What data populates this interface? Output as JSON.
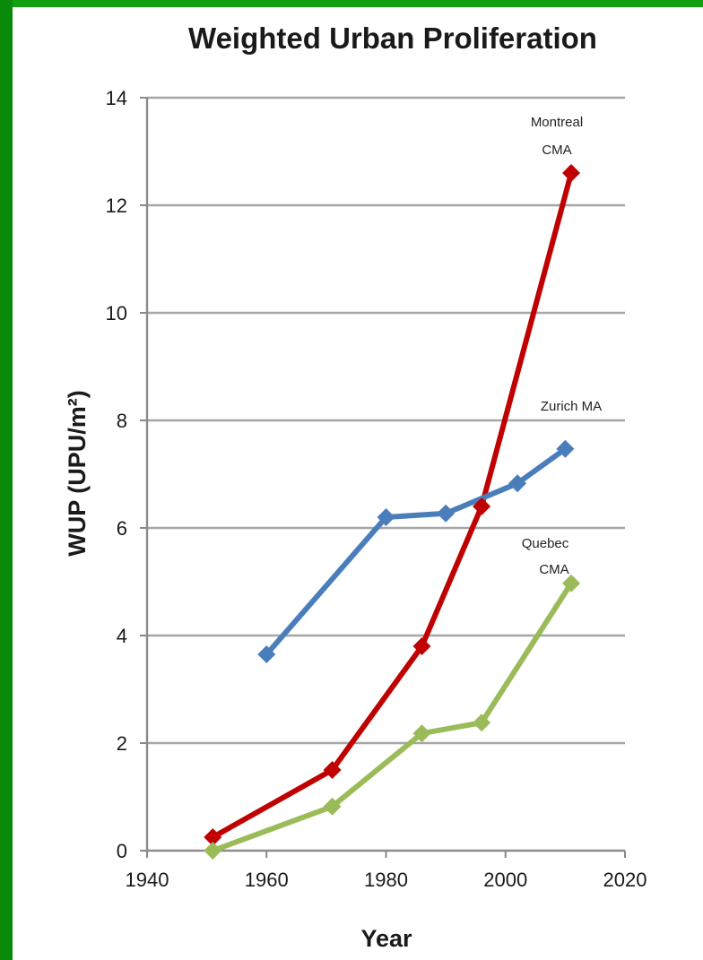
{
  "chart_data": {
    "type": "line",
    "title": "Weighted Urban Proliferation",
    "xlabel": "Year",
    "ylabel": "WUP (UPU/m²)",
    "xlim": [
      1940,
      2020
    ],
    "ylim": [
      0,
      14
    ],
    "xticks": [
      "1940",
      "1960",
      "1980",
      "2000",
      "2020"
    ],
    "yticks": [
      "0",
      "2",
      "4",
      "6",
      "8",
      "10",
      "12",
      "14"
    ],
    "grid": "horizontal",
    "series": [
      {
        "name": "Montreal CMA",
        "color": "#c00000",
        "points": [
          [
            1951,
            0.25
          ],
          [
            1971,
            1.5
          ],
          [
            1986,
            3.8
          ],
          [
            1996,
            6.4
          ],
          [
            2011,
            12.6
          ]
        ]
      },
      {
        "name": "Zurich MA",
        "color": "#4a7ebb",
        "points": [
          [
            1960,
            3.65
          ],
          [
            1980,
            6.2
          ],
          [
            1990,
            6.27
          ],
          [
            2002,
            6.83
          ],
          [
            2010,
            7.47
          ]
        ]
      },
      {
        "name": "Quebec CMA",
        "color": "#9bbb59",
        "points": [
          [
            1951,
            0.0
          ],
          [
            1971,
            0.82
          ],
          [
            1986,
            2.18
          ],
          [
            1996,
            2.38
          ],
          [
            2011,
            4.97
          ]
        ]
      }
    ],
    "annotations": {
      "montreal_line1": "Montreal",
      "montreal_line2": "CMA",
      "zurich": "Zurich MA",
      "quebec_line1": "Quebec",
      "quebec_line2": "CMA"
    }
  }
}
